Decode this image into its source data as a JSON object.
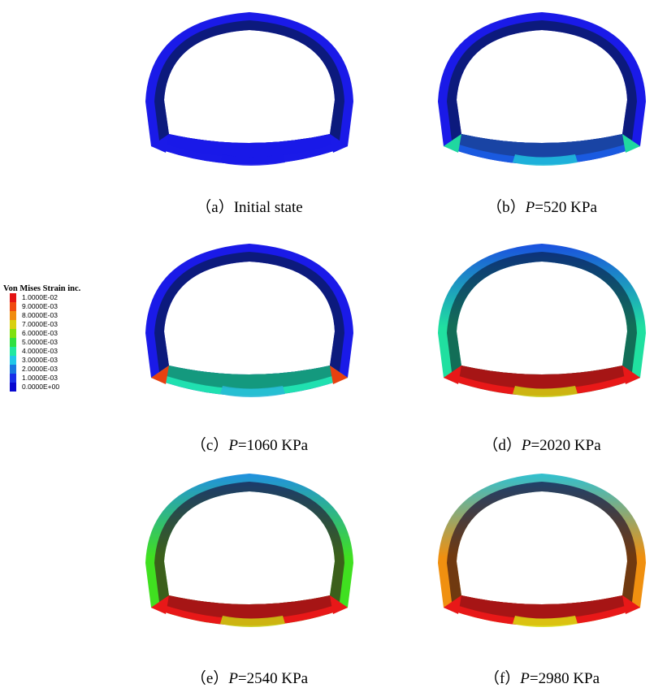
{
  "legend": {
    "title": "Von Mises Strain inc.",
    "entries": [
      {
        "label": "1.0000E-02",
        "color": "#e41414"
      },
      {
        "label": "9.0000E-03",
        "color": "#f04a10"
      },
      {
        "label": "8.0000E-03",
        "color": "#f08c10"
      },
      {
        "label": "7.0000E-03",
        "color": "#d8d010"
      },
      {
        "label": "6.0000E-03",
        "color": "#80e010"
      },
      {
        "label": "5.0000E-03",
        "color": "#30e040"
      },
      {
        "label": "4.0000E-03",
        "color": "#20e8a0"
      },
      {
        "label": "3.0000E-03",
        "color": "#20c8e8"
      },
      {
        "label": "2.0000E-03",
        "color": "#1878e0"
      },
      {
        "label": "1.0000E-03",
        "color": "#1830e8"
      },
      {
        "label": "0.0000E+00",
        "color": "#0808d0"
      }
    ]
  },
  "panels": [
    {
      "letter": "（a）",
      "pre": "Initial state",
      "var": "",
      "rest": "",
      "outer": "#1a1ae8",
      "inner": "#0a1a6a",
      "outer_side": "#1a1ae8",
      "inner_side": "#0a1a6a",
      "invert_outer": "#1a1ae8",
      "invert_inner": "#1a1ae8",
      "invert_accent": "#1a1ae8",
      "corner": "#1a1ae8"
    },
    {
      "letter": "（b）",
      "pre": "",
      "var": "P",
      "rest": "=520 KPa",
      "outer": "#1a1ae8",
      "inner": "#0a1a6a",
      "outer_side": "#1a1ae8",
      "inner_side": "#0a1a6a",
      "invert_outer": "#1a5ae0",
      "invert_inner": "#1a3a8a",
      "invert_accent": "#20c0d8",
      "corner": "#20d8a0"
    },
    {
      "letter": "（c）",
      "pre": "",
      "var": "P",
      "rest": "=1060 KPa",
      "outer": "#1a1ae8",
      "inner": "#0a1a6a",
      "outer_side": "#1a1ae8",
      "inner_side": "#0a1a6a",
      "invert_outer": "#20e0b0",
      "invert_inner": "#107a6a",
      "invert_accent": "#28b8d8",
      "corner": "#e84010"
    },
    {
      "letter": "（d）",
      "pre": "",
      "var": "P",
      "rest": "=2020 KPa",
      "outer": "#1a50e0",
      "inner": "#0a2a6a",
      "outer_side": "#20e0a0",
      "inner_side": "#105a4a",
      "invert_outer": "#e81818",
      "invert_inner": "#8a1414",
      "invert_accent": "#c8d010",
      "corner": "#e81818"
    },
    {
      "letter": "（e）",
      "pre": "",
      "var": "P",
      "rest": "=2540 KPa",
      "outer": "#2090e0",
      "inner": "#1a2a5a",
      "outer_side": "#40e020",
      "inner_side": "#3a4a1a",
      "invert_outer": "#e81818",
      "invert_inner": "#8a1414",
      "invert_accent": "#c8d010",
      "corner": "#e81818"
    },
    {
      "letter": "（f）",
      "pre": "",
      "var": "P",
      "rest": "=2980 KPa",
      "outer": "#30c0d0",
      "inner": "#1a2a5a",
      "outer_side": "#f09010",
      "inner_side": "#5a2a10",
      "invert_outer": "#e81818",
      "invert_inner": "#8a1414",
      "invert_accent": "#d8e010",
      "corner": "#e81818"
    }
  ]
}
